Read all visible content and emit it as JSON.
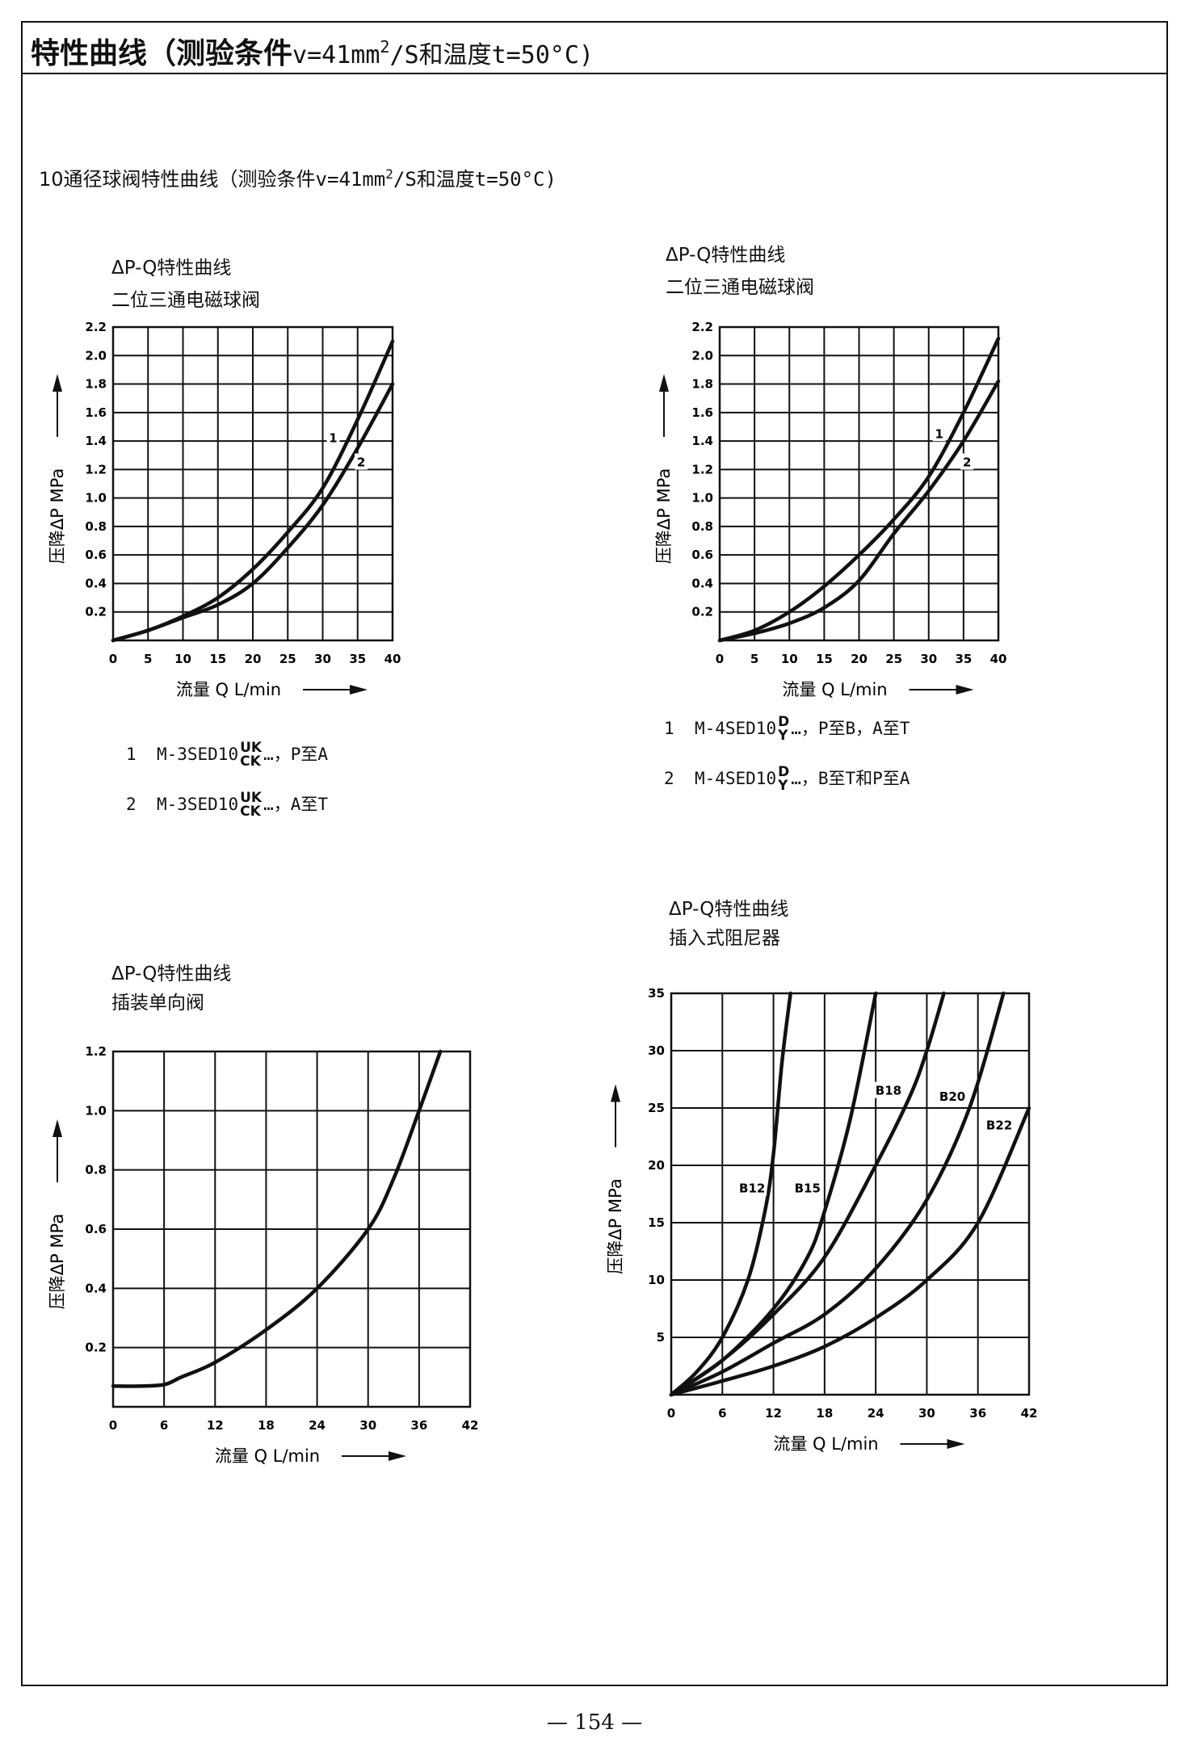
{
  "header": {
    "title_prefix": "特性曲线（测验条件",
    "title_condition": "v=41mm",
    "title_sup": "2",
    "title_mid": "/S和温度",
    "title_condition2": "t=50°C)"
  },
  "subtitle": {
    "prefix": "10通径球阀特性曲线（测验条件",
    "condition": "v=41mm",
    "sup": "2",
    "mid": "/S和温度",
    "condition2": "t=50°C)"
  },
  "chart_data": [
    {
      "type": "line",
      "title": "ΔP-Q特性曲线",
      "subtitle": "二位三通电磁球阀",
      "xlabel": "流量 Q L/min",
      "ylabel": "压降ΔP MPa",
      "xlim": [
        0,
        40
      ],
      "ylim": [
        0,
        2.2
      ],
      "x_ticks": [
        0,
        5,
        10,
        15,
        20,
        25,
        30,
        35,
        40
      ],
      "x_tick_labels": [
        "0",
        "5",
        "10",
        "15",
        "20",
        "25",
        "30",
        "35",
        "40"
      ],
      "y_ticks": [
        0.2,
        0.4,
        0.6,
        0.8,
        1.0,
        1.2,
        1.4,
        1.6,
        1.8,
        2.0,
        2.2
      ],
      "y_tick_labels": [
        "0.2",
        "0.4",
        "0.6",
        "0.8",
        "1.0",
        "1.2",
        "1.4",
        "1.6",
        "1.8",
        "2.0",
        "2.2"
      ],
      "grid": true,
      "series": [
        {
          "name": "1",
          "x": [
            0,
            5,
            10,
            15,
            20,
            25,
            30,
            35,
            40
          ],
          "y": [
            0,
            0.07,
            0.17,
            0.3,
            0.5,
            0.76,
            1.07,
            1.55,
            2.1
          ]
        },
        {
          "name": "2",
          "x": [
            0,
            5,
            10,
            15,
            20,
            25,
            30,
            35,
            40
          ],
          "y": [
            0,
            0.07,
            0.16,
            0.25,
            0.4,
            0.65,
            0.95,
            1.35,
            1.8
          ]
        }
      ],
      "curve_labels": [
        {
          "text": "1",
          "x": 31.5,
          "y": 1.42
        },
        {
          "text": "2",
          "x": 35.5,
          "y": 1.25
        }
      ],
      "legend": [
        {
          "num": "1",
          "code": "M-3SED10",
          "top": "UK",
          "bottom": "CK",
          "rest": "…，P至A"
        },
        {
          "num": "2",
          "code": "M-3SED10",
          "top": "UK",
          "bottom": "CK",
          "rest": "…，A至T"
        }
      ]
    },
    {
      "type": "line",
      "title": "ΔP-Q特性曲线",
      "subtitle": "二位三通电磁球阀",
      "xlabel": "流量 Q L/min",
      "ylabel": "压降ΔP MPa",
      "xlim": [
        0,
        40
      ],
      "ylim": [
        0,
        2.2
      ],
      "x_ticks": [
        0,
        5,
        10,
        15,
        20,
        25,
        30,
        35,
        40
      ],
      "x_tick_labels": [
        "0",
        "5",
        "10",
        "15",
        "20",
        "25",
        "30",
        "35",
        "40"
      ],
      "y_ticks": [
        0.2,
        0.4,
        0.6,
        0.8,
        1.0,
        1.2,
        1.4,
        1.6,
        1.8,
        2.0,
        2.2
      ],
      "y_tick_labels": [
        "0.2",
        "0.4",
        "0.6",
        "0.8",
        "1.0",
        "1.2",
        "1.4",
        "1.6",
        "1.8",
        "2.0",
        "2.2"
      ],
      "grid": true,
      "series": [
        {
          "name": "1",
          "x": [
            0,
            5,
            10,
            15,
            20,
            25,
            30,
            35,
            40
          ],
          "y": [
            0,
            0.07,
            0.2,
            0.38,
            0.6,
            0.85,
            1.15,
            1.6,
            2.12
          ]
        },
        {
          "name": "2",
          "x": [
            0,
            5,
            10,
            15,
            20,
            25,
            30,
            35,
            40
          ],
          "y": [
            0,
            0.05,
            0.12,
            0.23,
            0.42,
            0.75,
            1.05,
            1.4,
            1.82
          ]
        }
      ],
      "curve_labels": [
        {
          "text": "1",
          "x": 31.5,
          "y": 1.45
        },
        {
          "text": "2",
          "x": 35.5,
          "y": 1.25
        }
      ],
      "legend": [
        {
          "num": "1",
          "code": "M-4SED10",
          "top": "D",
          "bottom": "Y",
          "rest": "…，P至B，A至T"
        },
        {
          "num": "2",
          "code": "M-4SED10",
          "top": "D",
          "bottom": "Y",
          "rest": "…，B至T和P至A"
        }
      ]
    },
    {
      "type": "line",
      "title": "ΔP-Q特性曲线",
      "subtitle": "插装单向阀",
      "xlabel": "流量 Q L/min",
      "ylabel": "压降ΔP MPa",
      "xlim": [
        0,
        42
      ],
      "ylim": [
        0,
        1.2
      ],
      "x_ticks": [
        0,
        6,
        12,
        18,
        24,
        30,
        36,
        42
      ],
      "x_tick_labels": [
        "0",
        "6",
        "12",
        "18",
        "24",
        "30",
        "36",
        "42"
      ],
      "y_ticks": [
        0.2,
        0.4,
        0.6,
        0.8,
        1.0,
        1.2
      ],
      "y_tick_labels": [
        "0.2",
        "0.4",
        "0.6",
        "0.8",
        "1.0",
        "1.2"
      ],
      "grid": true,
      "series": [
        {
          "name": "",
          "x": [
            0,
            3,
            6,
            8,
            12,
            18,
            24,
            30,
            33,
            36,
            38.5
          ],
          "y": [
            0.07,
            0.07,
            0.075,
            0.1,
            0.15,
            0.26,
            0.4,
            0.6,
            0.77,
            1.0,
            1.2
          ]
        }
      ]
    },
    {
      "type": "line",
      "title": "ΔP-Q特性曲线",
      "subtitle": "插入式阻尼器",
      "xlabel": "流量 Q L/min",
      "ylabel": "压降ΔP MPa",
      "xlim": [
        0,
        42
      ],
      "ylim": [
        0,
        35
      ],
      "x_ticks": [
        0,
        6,
        12,
        18,
        24,
        30,
        36,
        42
      ],
      "x_tick_labels": [
        "0",
        "6",
        "12",
        "18",
        "24",
        "30",
        "36",
        "42"
      ],
      "y_ticks": [
        5,
        10,
        15,
        20,
        25,
        30,
        35
      ],
      "y_tick_labels": [
        "5",
        "10",
        "15",
        "20",
        "25",
        "30",
        "35"
      ],
      "grid": true,
      "series": [
        {
          "name": "B12",
          "x": [
            0,
            3,
            6,
            9,
            11,
            12,
            13,
            14
          ],
          "y": [
            0,
            2,
            5,
            10,
            16,
            21,
            29,
            35
          ]
        },
        {
          "name": "B15",
          "x": [
            0,
            6,
            12,
            16,
            18,
            21,
            24
          ],
          "y": [
            0,
            3,
            7.5,
            12,
            16,
            24,
            35
          ]
        },
        {
          "name": "B18",
          "x": [
            0,
            6,
            12,
            18,
            24,
            28,
            30,
            32
          ],
          "y": [
            0,
            3,
            7,
            12,
            20,
            26,
            30,
            35
          ]
        },
        {
          "name": "B20",
          "x": [
            0,
            6,
            12,
            18,
            24,
            30,
            35,
            39
          ],
          "y": [
            0,
            2,
            4.5,
            7,
            11,
            17,
            25,
            35
          ]
        },
        {
          "name": "B22",
          "x": [
            0,
            6,
            12,
            18,
            24,
            30,
            36,
            42
          ],
          "y": [
            0,
            1.2,
            2.5,
            4.2,
            6.7,
            10,
            15,
            25
          ]
        }
      ],
      "curve_labels": [
        {
          "text": "B12",
          "x": 9.5,
          "y": 18
        },
        {
          "text": "B15",
          "x": 16,
          "y": 18
        },
        {
          "text": "B18",
          "x": 25.5,
          "y": 26.5
        },
        {
          "text": "B20",
          "x": 33,
          "y": 26
        },
        {
          "text": "B22",
          "x": 38.5,
          "y": 23.5
        }
      ]
    }
  ],
  "page_number": "— 154 —"
}
